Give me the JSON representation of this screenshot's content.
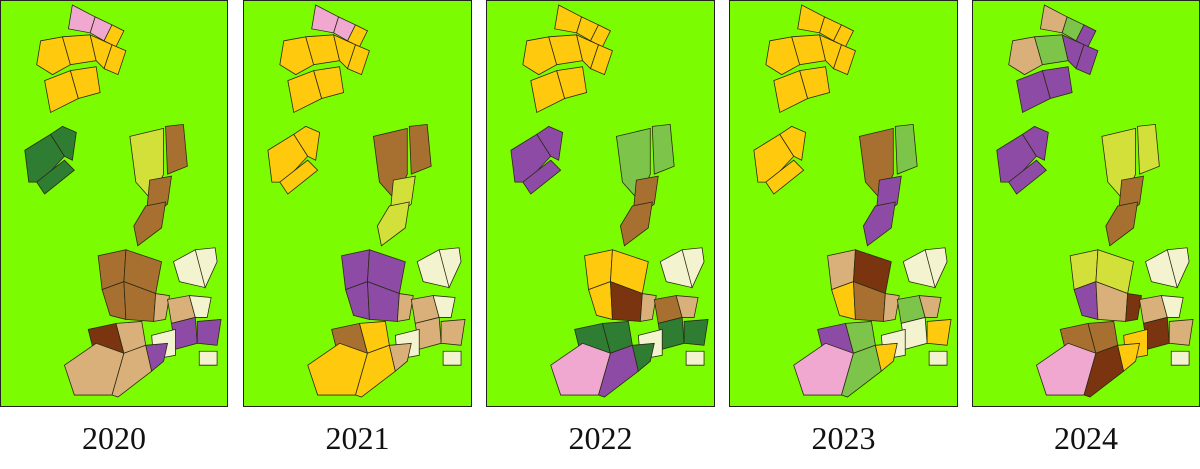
{
  "panels": [
    {
      "year": "2020",
      "background": "#7cfc00"
    },
    {
      "year": "2021",
      "background": "#7cfc00"
    },
    {
      "year": "2022",
      "background": "#7cfc00"
    },
    {
      "year": "2023",
      "background": "#7cfc00"
    },
    {
      "year": "2024",
      "background": "#7cfc00"
    }
  ],
  "class_colors": {
    "yellow": "#ffc90e",
    "pink": "#f0a8d0",
    "purple": "#8e4ba6",
    "dark_green": "#2e7d32",
    "olive_green": "#7cc44a",
    "yellow_green": "#d4e03a",
    "brown": "#a87030",
    "dark_brown": "#7a3410",
    "tan": "#d9b07a",
    "cream": "#f4f3d0"
  }
}
